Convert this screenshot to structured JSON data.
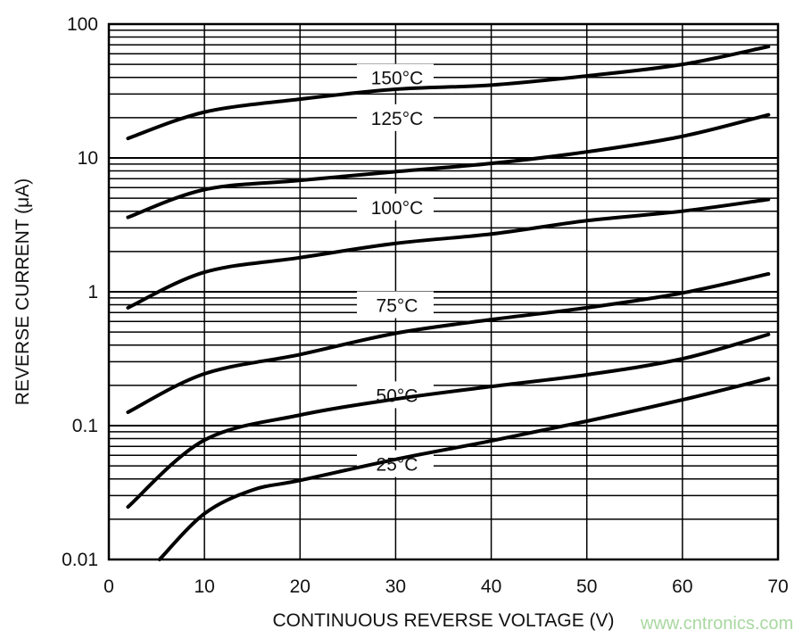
{
  "chart_data": {
    "type": "line",
    "title": "",
    "xlabel": "CONTINUOUS REVERSE VOLTAGE (V)",
    "ylabel": "REVERSE CURRENT (μA)",
    "xlim": [
      0,
      70
    ],
    "ylim": [
      0.01,
      100
    ],
    "yscale": "log",
    "grid": true,
    "x_ticks": [
      "0",
      "10",
      "20",
      "30",
      "40",
      "50",
      "60",
      "70"
    ],
    "y_ticks": [
      "0.01",
      "0.1",
      "1",
      "10",
      "100"
    ],
    "line_color": "#000000",
    "series": [
      {
        "name": "150°C",
        "x": [
          2,
          10,
          20,
          30,
          40,
          50,
          60,
          69
        ],
        "y": [
          14,
          22,
          27.5,
          32.6,
          35,
          41,
          50,
          68
        ]
      },
      {
        "name": "125°C",
        "x": [
          2,
          10,
          20,
          30,
          40,
          50,
          60,
          69
        ],
        "y": [
          3.6,
          5.8,
          6.8,
          7.9,
          9.1,
          11.1,
          14.5,
          21
        ]
      },
      {
        "name": "100°C",
        "x": [
          2,
          10,
          20,
          30,
          40,
          50,
          60,
          69
        ],
        "y": [
          0.76,
          1.4,
          1.8,
          2.3,
          2.7,
          3.4,
          4.0,
          4.9
        ]
      },
      {
        "name": "75°C",
        "x": [
          2,
          10,
          20,
          30,
          40,
          50,
          60,
          69
        ],
        "y": [
          0.126,
          0.244,
          0.34,
          0.49,
          0.62,
          0.76,
          0.98,
          1.36
        ]
      },
      {
        "name": "50°C",
        "x": [
          2,
          10,
          20,
          30,
          40,
          50,
          60,
          69
        ],
        "y": [
          0.0247,
          0.078,
          0.12,
          0.158,
          0.196,
          0.24,
          0.316,
          0.48
        ]
      },
      {
        "name": "25°C",
        "x": [
          5.3,
          10,
          15,
          20,
          30,
          40,
          50,
          60,
          69
        ],
        "y": [
          0.01,
          0.022,
          0.033,
          0.039,
          0.056,
          0.077,
          0.108,
          0.156,
          0.225
        ]
      }
    ],
    "label_positions_v": [
      40,
      20,
      4.3,
      0.8,
      0.17,
      0.052
    ],
    "watermark": "www.cntronics.com"
  }
}
